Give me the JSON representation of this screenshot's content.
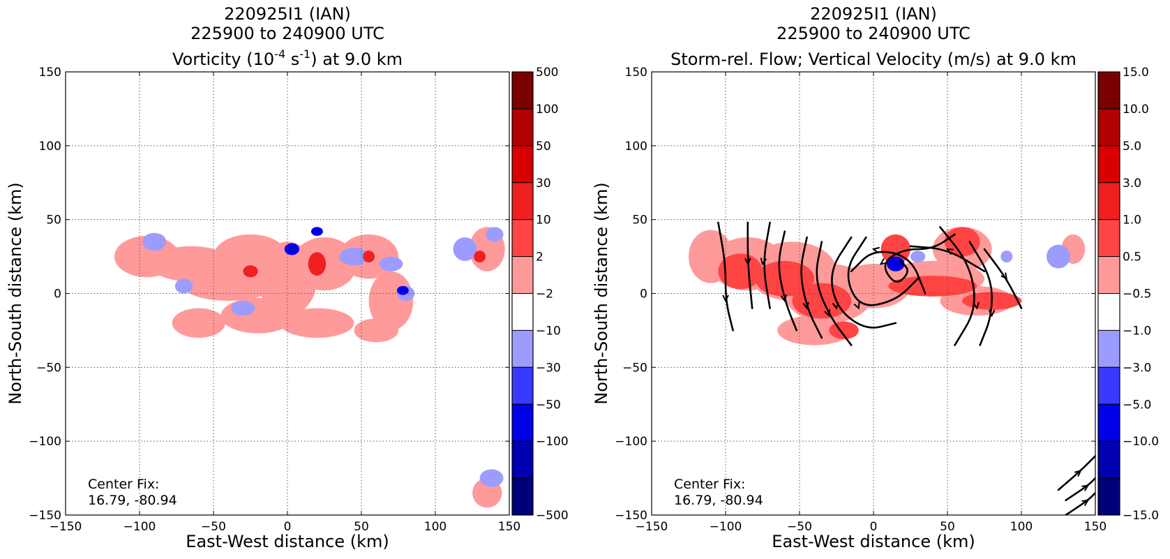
{
  "chart_data": [
    {
      "type": "heatmap",
      "title_lines": [
        "220925I1 (IAN)",
        "225900 to 240900 UTC"
      ],
      "title_var": {
        "pre": "Vorticity (10",
        "exp1": "-4",
        "mid": " s",
        "exp2": "-1",
        "post": ") at 9.0 km"
      },
      "xlabel": "East-West distance (km)",
      "ylabel": "North-South distance (km)",
      "xlim": [
        -150,
        150
      ],
      "ylim": [
        -150,
        150
      ],
      "xticks": [
        -150,
        -100,
        -50,
        0,
        50,
        100,
        150
      ],
      "yticks": [
        -150,
        -100,
        -50,
        0,
        50,
        100,
        150
      ],
      "tick_labels_x": [
        "−150",
        "−100",
        "−50",
        "0",
        "50",
        "100",
        "150"
      ],
      "tick_labels_y": [
        "−150",
        "−100",
        "−50",
        "0",
        "50",
        "100",
        "150"
      ],
      "grid": true,
      "annotation": [
        "Center Fix:",
        "16.79, -80.94"
      ],
      "colorbar": {
        "labels": [
          "500",
          "100",
          "50",
          "30",
          "10",
          "2",
          "−2",
          "−10",
          "−30",
          "−50",
          "−100",
          "−500"
        ],
        "colors": [
          "#7a0000",
          "#b00000",
          "#d80000",
          "#f02020",
          "#ff4444",
          "#ff9a9a",
          "#ffffff",
          "#9c9cff",
          "#3a3aff",
          "#0000e8",
          "#0000b0",
          "#00007a"
        ]
      },
      "blobs": [
        {
          "x": -95,
          "y": 25,
          "rx": 22,
          "ry": 14,
          "c": 5
        },
        {
          "x": -65,
          "y": 20,
          "rx": 28,
          "ry": 12,
          "c": 5
        },
        {
          "x": -40,
          "y": 5,
          "rx": 30,
          "ry": 10,
          "c": 5
        },
        {
          "x": -25,
          "y": 25,
          "rx": 25,
          "ry": 15,
          "c": 5
        },
        {
          "x": 0,
          "y": 10,
          "rx": 20,
          "ry": 25,
          "c": 5
        },
        {
          "x": 25,
          "y": 20,
          "rx": 22,
          "ry": 18,
          "c": 5
        },
        {
          "x": 55,
          "y": 25,
          "rx": 20,
          "ry": 15,
          "c": 5
        },
        {
          "x": 70,
          "y": -5,
          "rx": 15,
          "ry": 20,
          "c": 5
        },
        {
          "x": -20,
          "y": -15,
          "rx": 25,
          "ry": 12,
          "c": 5
        },
        {
          "x": 20,
          "y": -20,
          "rx": 25,
          "ry": 10,
          "c": 5
        },
        {
          "x": -60,
          "y": -20,
          "rx": 18,
          "ry": 10,
          "c": 5
        },
        {
          "x": 60,
          "y": -25,
          "rx": 15,
          "ry": 8,
          "c": 5
        },
        {
          "x": 135,
          "y": 30,
          "rx": 12,
          "ry": 15,
          "c": 5
        },
        {
          "x": 135,
          "y": -135,
          "rx": 10,
          "ry": 10,
          "c": 5
        },
        {
          "x": -90,
          "y": 35,
          "rx": 8,
          "ry": 6,
          "c": 7
        },
        {
          "x": -70,
          "y": 5,
          "rx": 6,
          "ry": 5,
          "c": 7
        },
        {
          "x": -30,
          "y": -10,
          "rx": 8,
          "ry": 5,
          "c": 7
        },
        {
          "x": 45,
          "y": 25,
          "rx": 10,
          "ry": 6,
          "c": 7
        },
        {
          "x": 70,
          "y": 20,
          "rx": 8,
          "ry": 5,
          "c": 7
        },
        {
          "x": 80,
          "y": 0,
          "rx": 6,
          "ry": 5,
          "c": 7
        },
        {
          "x": 120,
          "y": 30,
          "rx": 8,
          "ry": 8,
          "c": 7
        },
        {
          "x": 140,
          "y": 40,
          "rx": 6,
          "ry": 5,
          "c": 7
        },
        {
          "x": 138,
          "y": -125,
          "rx": 8,
          "ry": 6,
          "c": 7
        },
        {
          "x": 20,
          "y": 20,
          "rx": 6,
          "ry": 8,
          "c": 3
        },
        {
          "x": -25,
          "y": 15,
          "rx": 5,
          "ry": 4,
          "c": 3
        },
        {
          "x": 55,
          "y": 25,
          "rx": 4,
          "ry": 4,
          "c": 3
        },
        {
          "x": 130,
          "y": 25,
          "rx": 4,
          "ry": 4,
          "c": 3
        },
        {
          "x": 3,
          "y": 30,
          "rx": 5,
          "ry": 4,
          "c": 9
        },
        {
          "x": 78,
          "y": 2,
          "rx": 4,
          "ry": 3,
          "c": 9
        },
        {
          "x": 20,
          "y": 42,
          "rx": 4,
          "ry": 3,
          "c": 9
        }
      ],
      "streamlines": []
    },
    {
      "type": "heatmap",
      "title_lines": [
        "220925I1 (IAN)",
        "225900 to 240900 UTC"
      ],
      "title_var": {
        "pre": "Storm-rel. Flow; Vertical Velocity (m/s) at 9.0 km",
        "exp1": "",
        "mid": "",
        "exp2": "",
        "post": ""
      },
      "xlabel": "East-West distance (km)",
      "ylabel": "North-South distance (km)",
      "xlim": [
        -150,
        150
      ],
      "ylim": [
        -150,
        150
      ],
      "xticks": [
        -150,
        -100,
        -50,
        0,
        50,
        100,
        150
      ],
      "yticks": [
        -150,
        -100,
        -50,
        0,
        50,
        100,
        150
      ],
      "tick_labels_x": [
        "−150",
        "−100",
        "−50",
        "0",
        "50",
        "100",
        "150"
      ],
      "tick_labels_y": [
        "−150",
        "−100",
        "−50",
        "0",
        "50",
        "100",
        "150"
      ],
      "grid": true,
      "annotation": [
        "Center Fix:",
        "16.79, -80.94"
      ],
      "colorbar": {
        "labels": [
          "15.0",
          "10.0",
          "5.0",
          "3.0",
          "1.0",
          "0.5",
          "−0.5",
          "−1.0",
          "−3.0",
          "−5.0",
          "−10.0",
          "−15.0"
        ],
        "colors": [
          "#7a0000",
          "#b00000",
          "#d80000",
          "#f02020",
          "#ff4444",
          "#ff9a9a",
          "#ffffff",
          "#9c9cff",
          "#3a3aff",
          "#0000e8",
          "#0000b0",
          "#00007a"
        ]
      },
      "blobs": [
        {
          "x": -110,
          "y": 25,
          "rx": 15,
          "ry": 18,
          "c": 5
        },
        {
          "x": -85,
          "y": 20,
          "rx": 25,
          "ry": 18,
          "c": 5
        },
        {
          "x": -55,
          "y": 15,
          "rx": 30,
          "ry": 20,
          "c": 5
        },
        {
          "x": -30,
          "y": 0,
          "rx": 30,
          "ry": 20,
          "c": 5
        },
        {
          "x": 0,
          "y": 5,
          "rx": 25,
          "ry": 15,
          "c": 5
        },
        {
          "x": 40,
          "y": 10,
          "rx": 35,
          "ry": 12,
          "c": 5
        },
        {
          "x": 60,
          "y": 30,
          "rx": 20,
          "ry": 15,
          "c": 5
        },
        {
          "x": 70,
          "y": -5,
          "rx": 25,
          "ry": 10,
          "c": 5
        },
        {
          "x": -40,
          "y": -25,
          "rx": 25,
          "ry": 10,
          "c": 5
        },
        {
          "x": 135,
          "y": 30,
          "rx": 8,
          "ry": 10,
          "c": 5
        },
        {
          "x": -90,
          "y": 15,
          "rx": 15,
          "ry": 12,
          "c": 4
        },
        {
          "x": -60,
          "y": 10,
          "rx": 20,
          "ry": 12,
          "c": 4
        },
        {
          "x": -35,
          "y": -5,
          "rx": 20,
          "ry": 12,
          "c": 4
        },
        {
          "x": 40,
          "y": 5,
          "rx": 30,
          "ry": 7,
          "c": 4
        },
        {
          "x": 60,
          "y": 35,
          "rx": 12,
          "ry": 10,
          "c": 4
        },
        {
          "x": 80,
          "y": -5,
          "rx": 20,
          "ry": 6,
          "c": 4
        },
        {
          "x": 15,
          "y": 30,
          "rx": 10,
          "ry": 10,
          "c": 4
        },
        {
          "x": -20,
          "y": -25,
          "rx": 10,
          "ry": 6,
          "c": 4
        },
        {
          "x": 15,
          "y": 20,
          "rx": 6,
          "ry": 5,
          "c": 9
        },
        {
          "x": 30,
          "y": 25,
          "rx": 5,
          "ry": 4,
          "c": 7
        },
        {
          "x": 125,
          "y": 25,
          "rx": 8,
          "ry": 8,
          "c": 7
        },
        {
          "x": 90,
          "y": 25,
          "rx": 4,
          "ry": 4,
          "c": 7
        }
      ],
      "streamlines": [
        [
          [
            -105,
            48
          ],
          [
            -100,
            20
          ],
          [
            -100,
            -5
          ],
          [
            -95,
            -25
          ]
        ],
        [
          [
            -85,
            48
          ],
          [
            -85,
            20
          ],
          [
            -82,
            -10
          ]
        ],
        [
          [
            -70,
            48
          ],
          [
            -75,
            20
          ],
          [
            -70,
            -10
          ]
        ],
        [
          [
            -60,
            42
          ],
          [
            -65,
            20
          ],
          [
            -60,
            -5
          ],
          [
            -52,
            -25
          ]
        ],
        [
          [
            -45,
            38
          ],
          [
            -50,
            15
          ],
          [
            -45,
            -10
          ],
          [
            -35,
            -30
          ]
        ],
        [
          [
            -35,
            35
          ],
          [
            -40,
            10
          ],
          [
            -30,
            -15
          ],
          [
            -15,
            -35
          ]
        ],
        [
          [
            -15,
            38
          ],
          [
            -30,
            15
          ],
          [
            -25,
            -10
          ],
          [
            -5,
            -25
          ],
          [
            15,
            -20
          ]
        ],
        [
          [
            -5,
            38
          ],
          [
            -20,
            15
          ],
          [
            -10,
            -10
          ],
          [
            15,
            -5
          ],
          [
            30,
            10
          ]
        ],
        [
          [
            35,
            0
          ],
          [
            25,
            25
          ],
          [
            0,
            30
          ],
          [
            -15,
            15
          ]
        ],
        [
          [
            55,
            40
          ],
          [
            40,
            30
          ],
          [
            20,
            30
          ],
          [
            5,
            20
          ],
          [
            15,
            5
          ],
          [
            25,
            15
          ],
          [
            18,
            22
          ]
        ],
        [
          [
            75,
            15
          ],
          [
            50,
            30
          ],
          [
            25,
            32
          ]
        ],
        [
          [
            45,
            45
          ],
          [
            65,
            20
          ],
          [
            70,
            -10
          ],
          [
            55,
            -35
          ]
        ],
        [
          [
            65,
            35
          ],
          [
            80,
            10
          ],
          [
            80,
            -15
          ],
          [
            72,
            -35
          ]
        ],
        [
          [
            75,
            30
          ],
          [
            90,
            10
          ],
          [
            100,
            -10
          ]
        ],
        [
          [
            125,
            -133
          ],
          [
            140,
            -120
          ],
          [
            150,
            -110
          ]
        ],
        [
          [
            130,
            -140
          ],
          [
            145,
            -130
          ],
          [
            150,
            -125
          ]
        ],
        [
          [
            130,
            -150
          ],
          [
            145,
            -140
          ],
          [
            150,
            -135
          ]
        ]
      ]
    }
  ]
}
